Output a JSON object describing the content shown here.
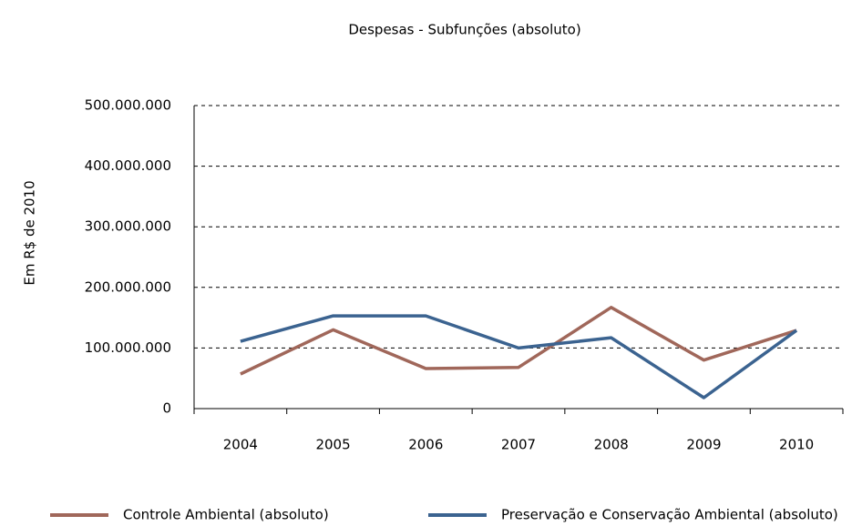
{
  "chart_data": {
    "type": "line",
    "title": "Despesas - Subfunções (absoluto)",
    "y_label": "Em R$ de 2010",
    "categories": [
      "2004",
      "2005",
      "2006",
      "2007",
      "2008",
      "2009",
      "2010"
    ],
    "series": [
      {
        "name": "Controle Ambiental (absoluto)",
        "color": "#a0675a",
        "values": [
          57000000,
          130000000,
          66000000,
          68000000,
          167000000,
          80000000,
          129000000
        ]
      },
      {
        "name": "Preservação e Conservação Ambiental (absoluto)",
        "color": "#3b6390",
        "values": [
          111000000,
          153000000,
          153000000,
          100000000,
          117000000,
          18000000,
          129000000
        ]
      }
    ],
    "ylim": [
      0,
      500000000
    ],
    "yticks": [
      0,
      {
        "value": 100000000,
        "label": "100.000.000"
      },
      {
        "value": 200000000,
        "label": "200.000.000"
      },
      {
        "value": 300000000,
        "label": "300.000.000"
      },
      {
        "value": 400000000,
        "label": "400.000.000"
      },
      {
        "value": 500000000,
        "label": "500.000.000"
      }
    ],
    "grid": true,
    "legend": "bottom"
  }
}
